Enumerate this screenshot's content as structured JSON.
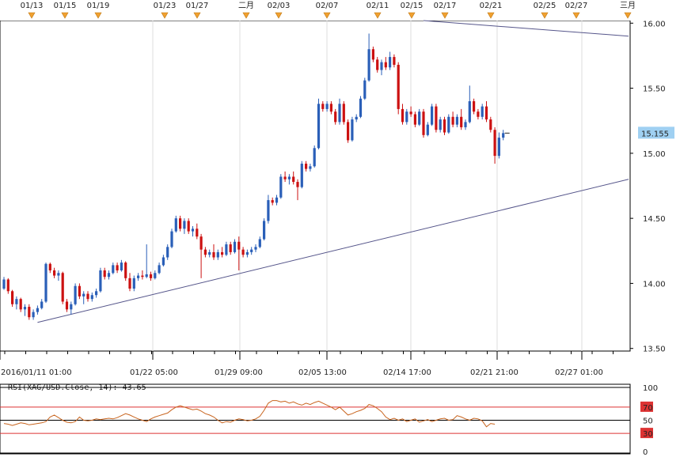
{
  "chart_data": [
    {
      "type": "candlestick",
      "instrument": "XAG/USD",
      "colors": {
        "up": "#2a5fb8",
        "down": "#cc1111",
        "price_tag_bg": "#9fd0f2",
        "trendline": "#55558a",
        "grid": "#dddddd"
      },
      "top_date_labels": [
        "01/13",
        "01/15",
        "01/19",
        "01/23",
        "01/27",
        "二月",
        "02/03",
        "02/07",
        "02/11",
        "02/15",
        "02/17",
        "02/21",
        "02/25",
        "02/27",
        "三月"
      ],
      "x_tick_labels": [
        "2016/01/11 01:00",
        "01/22 05:00",
        "01/29 09:00",
        "02/05 13:00",
        "02/14 17:00",
        "02/21 21:00",
        "02/27 01:00"
      ],
      "y_tick_labels": [
        "16.00",
        "15.50",
        "15.155",
        "15.00",
        "14.50",
        "14.00",
        "13.50"
      ],
      "yticks": [
        16.0,
        15.5,
        15.0,
        14.5,
        14.0,
        13.5
      ],
      "ylim": [
        13.48,
        16.02
      ],
      "last_price": 15.155,
      "last_price_label": "15.155",
      "trendlines": [
        {
          "from_index": 8,
          "from_value": 13.7,
          "to_index": 170,
          "to_value": 14.8
        },
        {
          "from_index": 100,
          "from_value": 16.02,
          "to_index": 170,
          "to_value": 15.9
        }
      ],
      "candles_ohlc": [
        [
          13.96,
          14.05,
          13.95,
          14.03
        ],
        [
          14.03,
          14.04,
          13.92,
          13.94
        ],
        [
          13.94,
          13.95,
          13.82,
          13.84
        ],
        [
          13.84,
          13.9,
          13.8,
          13.88
        ],
        [
          13.88,
          13.89,
          13.78,
          13.8
        ],
        [
          13.8,
          13.84,
          13.75,
          13.82
        ],
        [
          13.82,
          13.84,
          13.72,
          13.74
        ],
        [
          13.74,
          13.8,
          13.72,
          13.78
        ],
        [
          13.78,
          13.83,
          13.76,
          13.81
        ],
        [
          13.81,
          13.88,
          13.8,
          13.86
        ],
        [
          13.86,
          14.16,
          13.85,
          14.15
        ],
        [
          14.15,
          14.16,
          14.08,
          14.1
        ],
        [
          14.1,
          14.12,
          14.04,
          14.06
        ],
        [
          14.06,
          14.1,
          14.02,
          14.08
        ],
        [
          14.08,
          14.09,
          13.84,
          13.86
        ],
        [
          13.86,
          13.88,
          13.78,
          13.8
        ],
        [
          13.8,
          13.86,
          13.76,
          13.84
        ],
        [
          13.84,
          14.0,
          13.83,
          13.98
        ],
        [
          13.98,
          14.0,
          13.88,
          13.9
        ],
        [
          13.9,
          13.94,
          13.84,
          13.92
        ],
        [
          13.92,
          13.94,
          13.86,
          13.88
        ],
        [
          13.88,
          13.93,
          13.86,
          13.91
        ],
        [
          13.91,
          13.96,
          13.89,
          13.94
        ],
        [
          13.94,
          14.12,
          13.93,
          14.1
        ],
        [
          14.1,
          14.12,
          14.03,
          14.05
        ],
        [
          14.05,
          14.1,
          14.03,
          14.08
        ],
        [
          14.08,
          14.16,
          14.07,
          14.14
        ],
        [
          14.14,
          14.16,
          14.08,
          14.1
        ],
        [
          14.1,
          14.18,
          14.09,
          14.16
        ],
        [
          14.16,
          14.17,
          14.02,
          14.04
        ],
        [
          14.04,
          14.08,
          13.94,
          13.96
        ],
        [
          13.96,
          14.06,
          13.94,
          14.04
        ],
        [
          14.04,
          14.08,
          14.02,
          14.06
        ],
        [
          14.06,
          14.1,
          14.03,
          14.05
        ],
        [
          14.05,
          14.3,
          14.04,
          14.07
        ],
        [
          14.07,
          14.09,
          14.02,
          14.04
        ],
        [
          14.04,
          14.1,
          14.03,
          14.08
        ],
        [
          14.08,
          14.16,
          14.07,
          14.14
        ],
        [
          14.14,
          14.22,
          14.13,
          14.2
        ],
        [
          14.2,
          14.3,
          14.18,
          14.28
        ],
        [
          14.28,
          14.42,
          14.27,
          14.4
        ],
        [
          14.4,
          14.52,
          14.39,
          14.5
        ],
        [
          14.5,
          14.52,
          14.4,
          14.42
        ],
        [
          14.42,
          14.5,
          14.38,
          14.48
        ],
        [
          14.48,
          14.5,
          14.38,
          14.4
        ],
        [
          14.4,
          14.44,
          14.36,
          14.42
        ],
        [
          14.42,
          14.46,
          14.34,
          14.36
        ],
        [
          14.36,
          14.38,
          14.04,
          14.26
        ],
        [
          14.26,
          14.28,
          14.2,
          14.22
        ],
        [
          14.22,
          14.26,
          14.2,
          14.24
        ],
        [
          14.24,
          14.3,
          14.18,
          14.2
        ],
        [
          14.2,
          14.26,
          14.18,
          14.24
        ],
        [
          14.24,
          14.28,
          14.2,
          14.22
        ],
        [
          14.22,
          14.32,
          14.21,
          14.3
        ],
        [
          14.3,
          14.32,
          14.22,
          14.24
        ],
        [
          14.24,
          14.34,
          14.23,
          14.32
        ],
        [
          14.32,
          14.36,
          14.1,
          14.26
        ],
        [
          14.26,
          14.28,
          14.2,
          14.22
        ],
        [
          14.22,
          14.26,
          14.2,
          14.24
        ],
        [
          14.24,
          14.28,
          14.22,
          14.26
        ],
        [
          14.26,
          14.3,
          14.24,
          14.28
        ],
        [
          14.28,
          14.36,
          14.27,
          14.34
        ],
        [
          14.34,
          14.5,
          14.33,
          14.48
        ],
        [
          14.48,
          14.68,
          14.46,
          14.64
        ],
        [
          14.64,
          14.66,
          14.6,
          14.62
        ],
        [
          14.62,
          14.68,
          14.6,
          14.66
        ],
        [
          14.66,
          14.84,
          14.65,
          14.82
        ],
        [
          14.82,
          14.86,
          14.78,
          14.8
        ],
        [
          14.8,
          14.84,
          14.76,
          14.82
        ],
        [
          14.82,
          14.86,
          14.76,
          14.78
        ],
        [
          14.78,
          14.8,
          14.64,
          14.74
        ],
        [
          14.74,
          14.94,
          14.73,
          14.92
        ],
        [
          14.92,
          14.94,
          14.86,
          14.88
        ],
        [
          14.88,
          14.92,
          14.86,
          14.9
        ],
        [
          14.9,
          15.06,
          14.89,
          15.04
        ],
        [
          15.04,
          15.42,
          15.03,
          15.38
        ],
        [
          15.38,
          15.4,
          15.32,
          15.34
        ],
        [
          15.34,
          15.4,
          15.32,
          15.38
        ],
        [
          15.38,
          15.4,
          15.3,
          15.32
        ],
        [
          15.32,
          15.34,
          15.22,
          15.24
        ],
        [
          15.24,
          15.42,
          15.22,
          15.38
        ],
        [
          15.38,
          15.4,
          15.22,
          15.24
        ],
        [
          15.24,
          15.26,
          15.08,
          15.1
        ],
        [
          15.1,
          15.28,
          15.09,
          15.26
        ],
        [
          15.26,
          15.3,
          15.24,
          15.28
        ],
        [
          15.28,
          15.44,
          15.27,
          15.42
        ],
        [
          15.42,
          15.58,
          15.41,
          15.56
        ],
        [
          15.56,
          15.92,
          15.55,
          15.8
        ],
        [
          15.8,
          15.82,
          15.7,
          15.72
        ],
        [
          15.72,
          15.74,
          15.62,
          15.64
        ],
        [
          15.64,
          15.72,
          15.6,
          15.7
        ],
        [
          15.7,
          15.74,
          15.64,
          15.66
        ],
        [
          15.66,
          15.78,
          15.64,
          15.74
        ],
        [
          15.74,
          15.76,
          15.66,
          15.68
        ],
        [
          15.68,
          15.7,
          15.3,
          15.34
        ],
        [
          15.34,
          15.38,
          15.22,
          15.24
        ],
        [
          15.24,
          15.34,
          15.22,
          15.32
        ],
        [
          15.32,
          15.36,
          15.28,
          15.3
        ],
        [
          15.3,
          15.32,
          15.2,
          15.22
        ],
        [
          15.22,
          15.34,
          15.21,
          15.32
        ],
        [
          15.32,
          15.34,
          15.12,
          15.14
        ],
        [
          15.14,
          15.24,
          15.13,
          15.22
        ],
        [
          15.22,
          15.38,
          15.21,
          15.36
        ],
        [
          15.36,
          15.38,
          15.16,
          15.18
        ],
        [
          15.18,
          15.28,
          15.16,
          15.26
        ],
        [
          15.26,
          15.28,
          15.14,
          15.16
        ],
        [
          15.16,
          15.3,
          15.15,
          15.28
        ],
        [
          15.28,
          15.32,
          15.2,
          15.22
        ],
        [
          15.22,
          15.3,
          15.2,
          15.28
        ],
        [
          15.28,
          15.34,
          15.18,
          15.2
        ],
        [
          15.2,
          15.26,
          15.18,
          15.24
        ],
        [
          15.24,
          15.52,
          15.23,
          15.4
        ],
        [
          15.4,
          15.42,
          15.3,
          15.32
        ],
        [
          15.32,
          15.34,
          15.26,
          15.28
        ],
        [
          15.28,
          15.38,
          15.26,
          15.36
        ],
        [
          15.36,
          15.4,
          15.24,
          15.26
        ],
        [
          15.26,
          15.28,
          15.16,
          15.18
        ],
        [
          15.18,
          15.2,
          14.92,
          14.98
        ],
        [
          14.98,
          15.16,
          14.96,
          15.12
        ],
        [
          15.12,
          15.18,
          15.1,
          15.155
        ]
      ]
    },
    {
      "type": "line",
      "title": "RSI(XAG/USD.Close, 14): 43.65",
      "y_tick_labels": [
        "100",
        "70",
        "50",
        "30",
        "0"
      ],
      "levels": [
        100,
        70,
        50,
        30,
        0
      ],
      "ylim": [
        0,
        100
      ],
      "colors": {
        "line": "#c8641e",
        "level_line": "#dd3333",
        "mid_line": "#000000",
        "level_badge": "#dd3333"
      },
      "values": [
        45,
        44,
        42,
        44,
        46,
        45,
        43,
        44,
        45,
        46,
        48,
        55,
        58,
        54,
        50,
        47,
        46,
        48,
        55,
        50,
        49,
        50,
        52,
        51,
        52,
        53,
        52,
        54,
        57,
        60,
        58,
        55,
        52,
        50,
        48,
        52,
        55,
        57,
        59,
        61,
        66,
        70,
        72,
        70,
        68,
        66,
        67,
        64,
        60,
        58,
        55,
        50,
        46,
        48,
        47,
        50,
        52,
        51,
        49,
        50,
        52,
        56,
        65,
        76,
        80,
        80,
        78,
        79,
        76,
        78,
        75,
        73,
        76,
        74,
        77,
        79,
        76,
        73,
        70,
        66,
        70,
        64,
        58,
        60,
        63,
        65,
        68,
        74,
        72,
        68,
        63,
        55,
        51,
        53,
        50,
        52,
        48,
        50,
        52,
        47,
        49,
        51,
        48,
        50,
        52,
        53,
        50,
        51,
        57,
        55,
        52,
        50,
        53,
        52,
        49,
        40,
        45,
        44
      ]
    }
  ]
}
